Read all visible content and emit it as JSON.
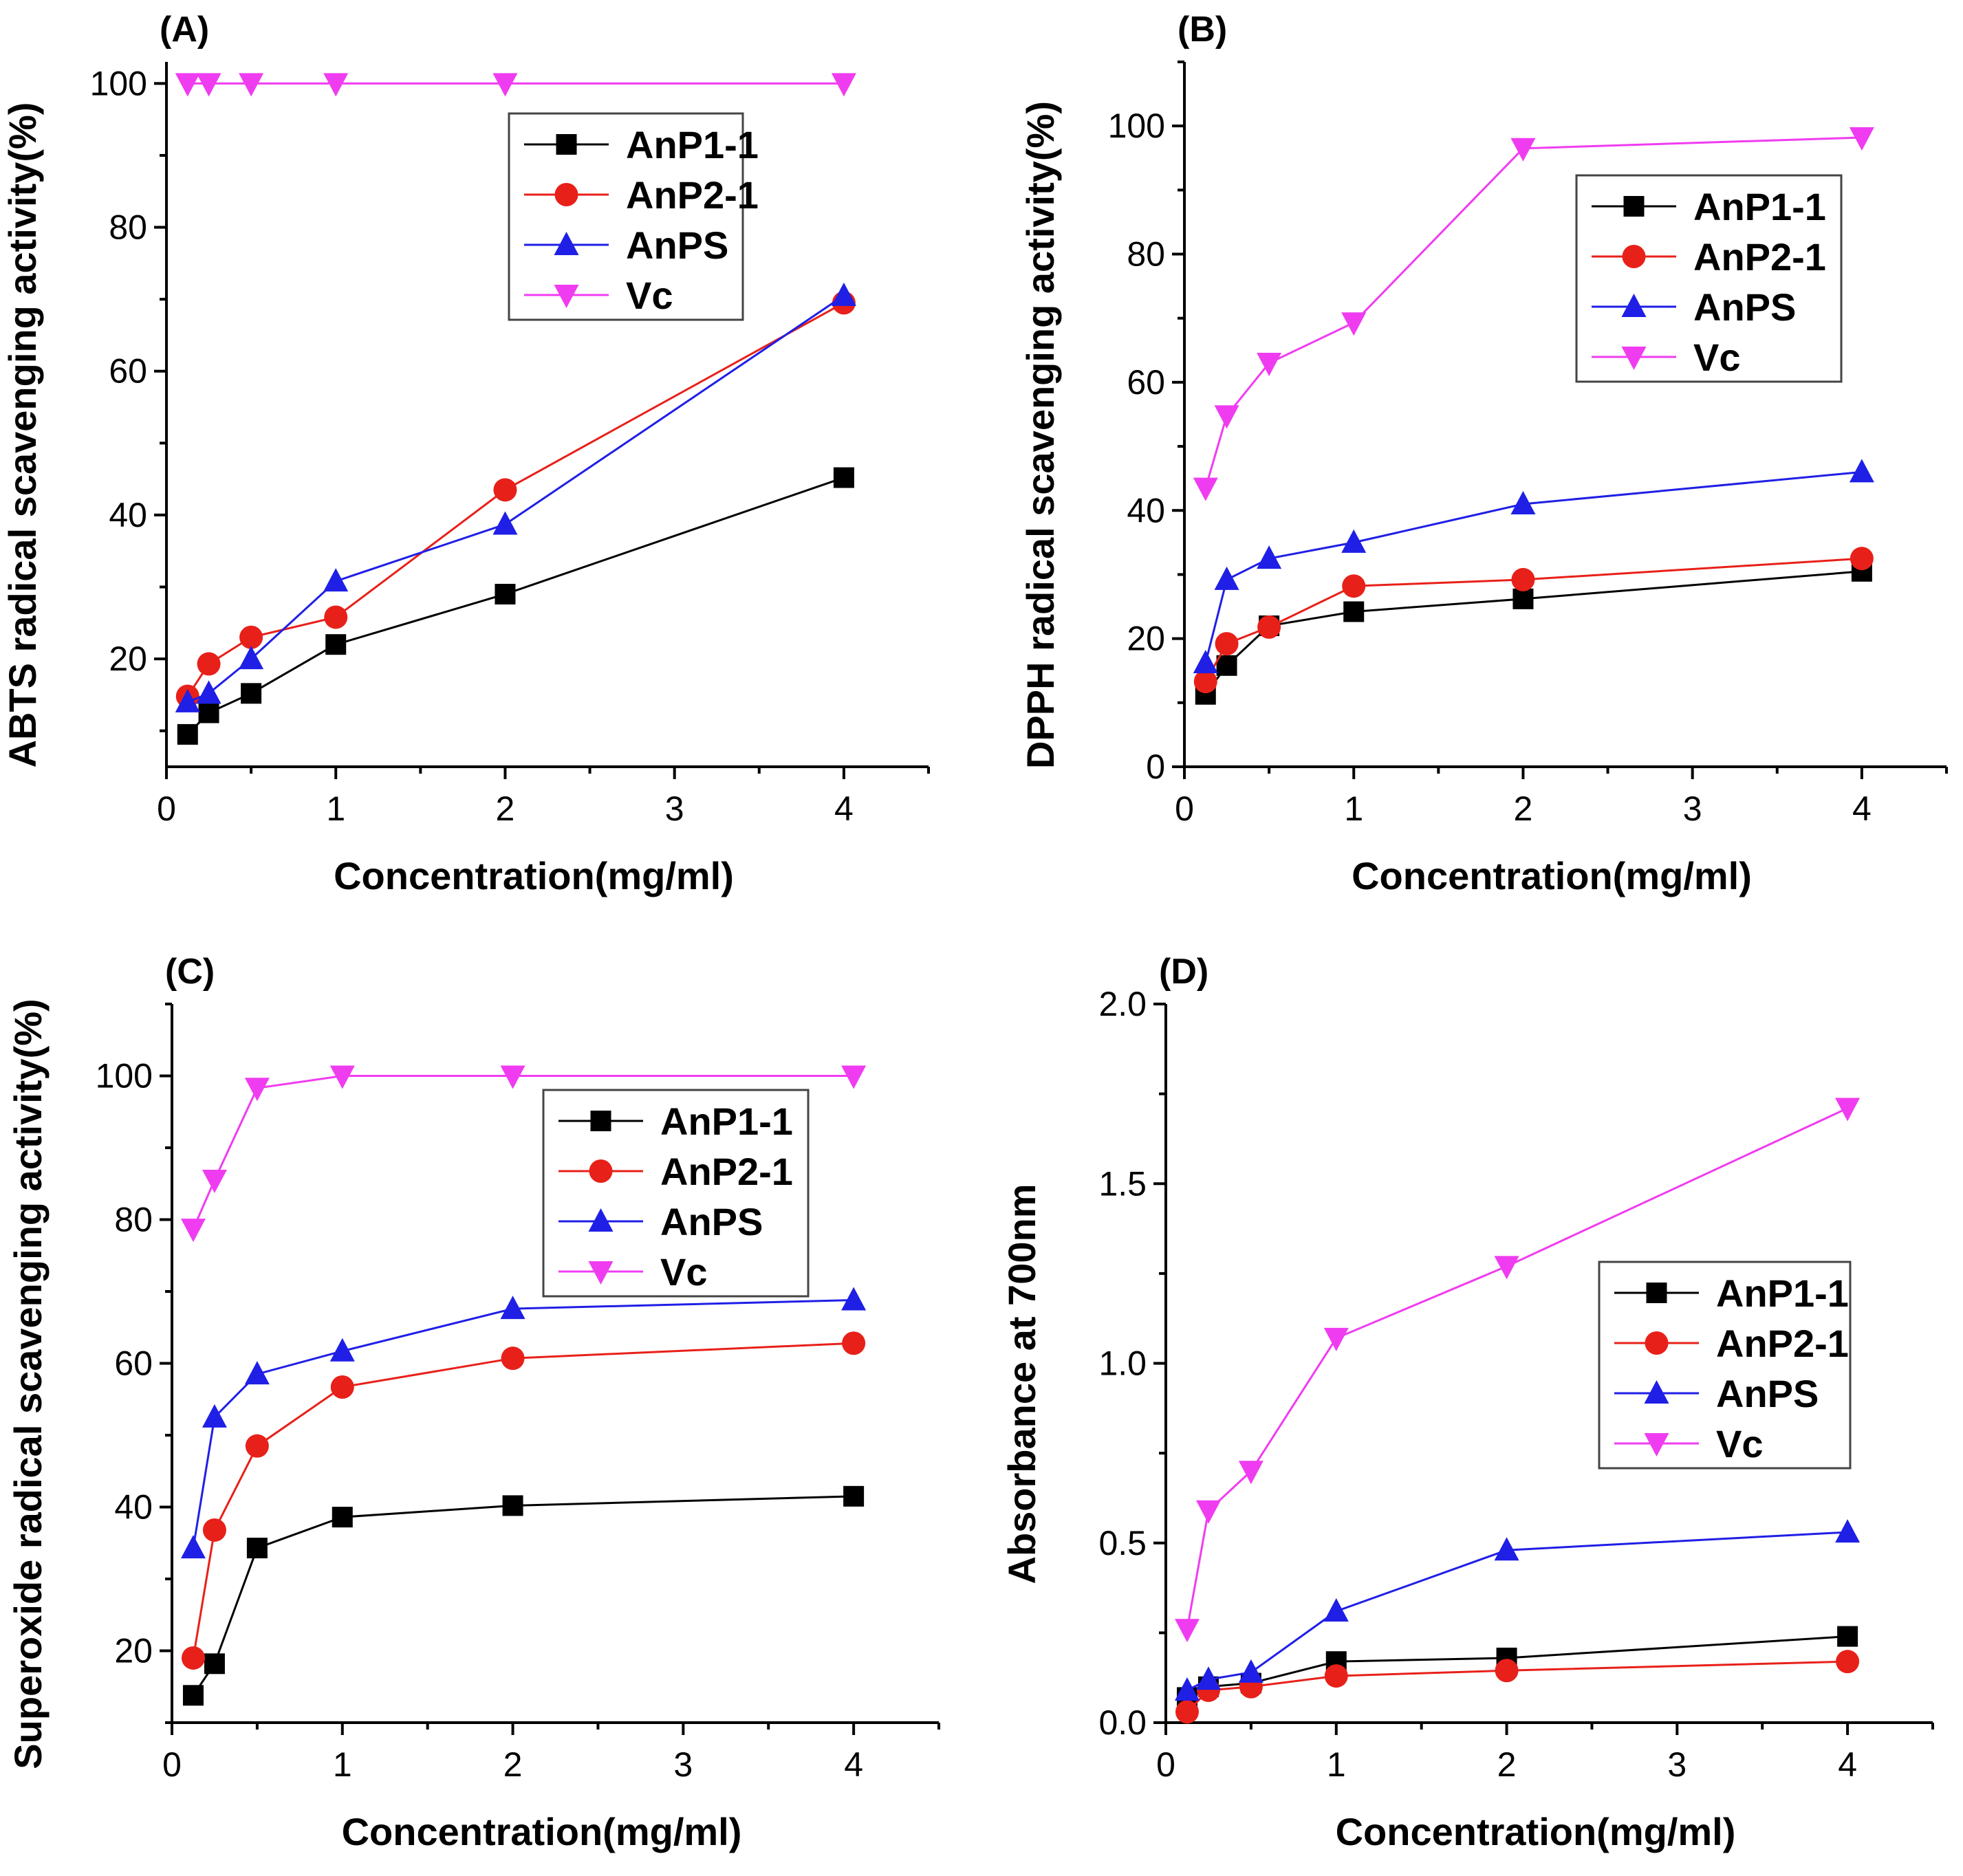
{
  "colors": {
    "AnP1-1": "#000000",
    "AnP2-1": "#e8201a",
    "AnPS": "#1f1fe6",
    "Vc": "#f03cf0"
  },
  "chart_data": [
    {
      "type": "line",
      "panel_label": "(A)",
      "title": "",
      "xlabel": "Concentration(mg/ml)",
      "ylabel": "ABTS radical scavenging activity(%)",
      "xlim": [
        0,
        4.5
      ],
      "ylim": [
        5,
        103
      ],
      "xticks": [
        0,
        1,
        2,
        3,
        4
      ],
      "yticks": [
        20,
        40,
        60,
        80,
        100
      ],
      "legend": "top-center",
      "x": [
        0.125,
        0.25,
        0.5,
        1,
        2,
        4
      ],
      "series": [
        {
          "name": "AnP1-1",
          "marker": "square",
          "values": [
            9.5,
            12.5,
            15.2,
            22,
            29,
            45.2
          ]
        },
        {
          "name": "AnP2-1",
          "marker": "circle",
          "values": [
            14.8,
            19.3,
            23,
            25.8,
            43.5,
            69.5
          ]
        },
        {
          "name": "AnPS",
          "marker": "triangle-up",
          "values": [
            14,
            15.2,
            20,
            30.8,
            38.7,
            70.5
          ]
        },
        {
          "name": "Vc",
          "marker": "triangle-down",
          "values": [
            100,
            100,
            100,
            100,
            100,
            100
          ]
        }
      ]
    },
    {
      "type": "line",
      "panel_label": "(B)",
      "title": "",
      "xlabel": "Concentration(mg/ml)",
      "ylabel": "DPPH radical scavenging activity(%)",
      "xlim": [
        0,
        4.5
      ],
      "ylim": [
        0,
        110
      ],
      "xticks": [
        0,
        1,
        2,
        3,
        4
      ],
      "yticks": [
        0,
        20,
        40,
        60,
        80,
        100
      ],
      "legend": "top-right",
      "x": [
        0.125,
        0.25,
        0.5,
        1,
        2,
        4
      ],
      "series": [
        {
          "name": "AnP1-1",
          "marker": "square",
          "values": [
            11.3,
            15.8,
            22,
            24.2,
            26.2,
            30.5
          ]
        },
        {
          "name": "AnP2-1",
          "marker": "circle",
          "values": [
            13.3,
            19.2,
            21.8,
            28.2,
            29.2,
            32.5
          ]
        },
        {
          "name": "AnPS",
          "marker": "triangle-up",
          "values": [
            16.2,
            29.2,
            32.5,
            35,
            41,
            46
          ]
        },
        {
          "name": "Vc",
          "marker": "triangle-down",
          "values": [
            43.5,
            54.8,
            63,
            69.3,
            96.5,
            98.2
          ]
        }
      ]
    },
    {
      "type": "line",
      "panel_label": "(C)",
      "title": "",
      "xlabel": "Concentration(mg/ml)",
      "ylabel": "Superoxide radical scavenging activity(%)",
      "xlim": [
        0,
        4.5
      ],
      "ylim": [
        10,
        110
      ],
      "xticks": [
        0,
        1,
        2,
        3,
        4
      ],
      "yticks": [
        20,
        40,
        60,
        80,
        100
      ],
      "legend": "top-center",
      "x": [
        0.125,
        0.25,
        0.5,
        1,
        2,
        4
      ],
      "series": [
        {
          "name": "AnP1-1",
          "marker": "square",
          "values": [
            13.8,
            18.2,
            34.3,
            38.6,
            40.2,
            41.5
          ]
        },
        {
          "name": "AnP2-1",
          "marker": "circle",
          "values": [
            19,
            36.8,
            48.5,
            56.7,
            60.7,
            62.8
          ]
        },
        {
          "name": "AnPS",
          "marker": "triangle-up",
          "values": [
            34.3,
            52.5,
            58.5,
            61.7,
            67.6,
            68.8
          ]
        },
        {
          "name": "Vc",
          "marker": "triangle-down",
          "values": [
            78.7,
            85.5,
            98.3,
            100,
            100,
            100
          ]
        }
      ]
    },
    {
      "type": "line",
      "panel_label": "(D)",
      "title": "",
      "xlabel": "Concentration(mg/ml)",
      "ylabel": "Absorbance at 700nm",
      "xlim": [
        0,
        4.5
      ],
      "ylim": [
        0,
        2.0
      ],
      "xticks": [
        0,
        1,
        2,
        3,
        4
      ],
      "yticks": [
        0.0,
        0.5,
        1.0,
        1.5,
        2.0
      ],
      "ytick_labels": [
        "0.0",
        "0.5",
        "1.0",
        "1.5",
        "2.0"
      ],
      "legend": "right",
      "x": [
        0.125,
        0.25,
        0.5,
        1,
        2,
        4
      ],
      "series": [
        {
          "name": "AnP1-1",
          "marker": "square",
          "values": [
            0.07,
            0.1,
            0.11,
            0.17,
            0.18,
            0.24
          ]
        },
        {
          "name": "AnP2-1",
          "marker": "circle",
          "values": [
            0.03,
            0.09,
            0.1,
            0.13,
            0.145,
            0.17
          ]
        },
        {
          "name": "AnPS",
          "marker": "triangle-up",
          "values": [
            0.09,
            0.12,
            0.14,
            0.31,
            0.48,
            0.53
          ]
        },
        {
          "name": "Vc",
          "marker": "triangle-down",
          "values": [
            0.26,
            0.59,
            0.7,
            1.07,
            1.27,
            1.71
          ]
        }
      ]
    }
  ]
}
